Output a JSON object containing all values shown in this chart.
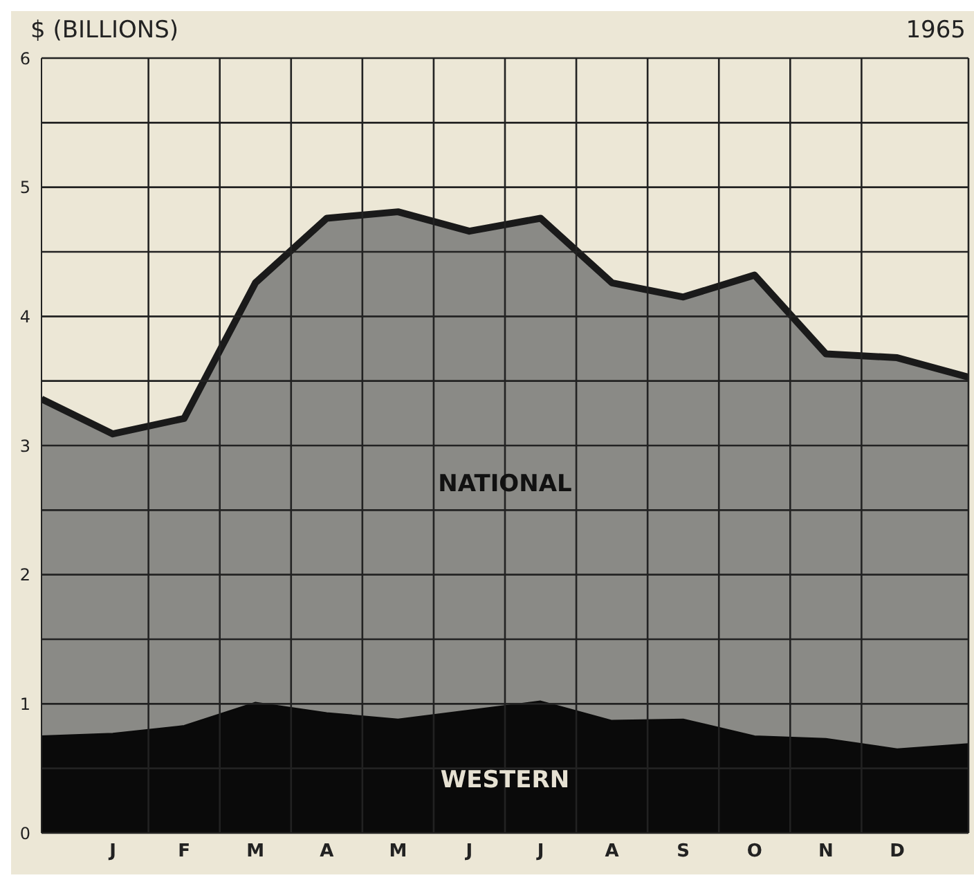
{
  "chart_data": {
    "type": "area",
    "title": "1965",
    "ylabel": "$ (BILLIONS)",
    "categories": [
      null,
      "J",
      "F",
      "M",
      "A",
      "M",
      "J",
      "J",
      "A",
      "S",
      "O",
      "N",
      "D",
      null
    ],
    "ylim": [
      0,
      6
    ],
    "yticks": [
      0,
      {
        "value": 0.5,
        "label": null
      },
      1,
      {
        "value": 1.5,
        "label": null
      },
      2,
      {
        "value": 2.5,
        "label": null
      },
      3,
      {
        "value": 3.5,
        "label": null
      },
      4,
      {
        "value": 4.5,
        "label": null
      },
      5,
      {
        "value": 5.5,
        "label": null
      },
      6
    ],
    "grid": true,
    "series": [
      {
        "name": "NATIONAL",
        "color": "#8a8a86",
        "values": [
          3.36,
          3.09,
          3.21,
          4.26,
          4.76,
          4.81,
          4.66,
          4.76,
          4.26,
          4.15,
          4.32,
          3.71,
          3.68,
          3.53
        ]
      },
      {
        "name": "WESTERN",
        "color": "#0a0a0a",
        "values": [
          0.75,
          0.77,
          0.83,
          1.01,
          0.93,
          0.88,
          0.95,
          1.02,
          0.87,
          0.88,
          0.75,
          0.73,
          0.65,
          0.69
        ]
      }
    ]
  }
}
